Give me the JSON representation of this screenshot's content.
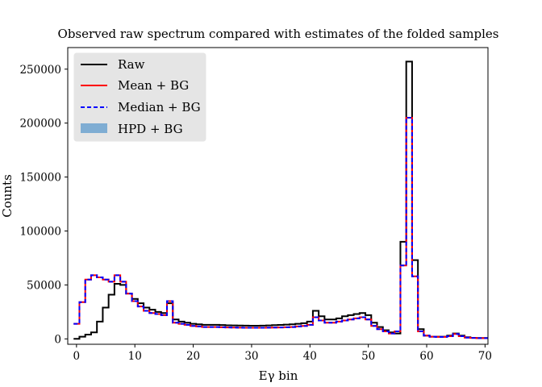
{
  "chart_data": {
    "type": "line",
    "title": "Observed raw spectrum compared with estimates of the folded samples",
    "xlabel": "Eγ bin",
    "ylabel": "Counts",
    "xlim": [
      -1.5,
      70.5
    ],
    "ylim": [
      -5000,
      270000
    ],
    "xticks": [
      0,
      10,
      20,
      30,
      40,
      50,
      60,
      70
    ],
    "yticks": [
      0,
      50000,
      100000,
      150000,
      200000,
      250000
    ],
    "grid": false,
    "legend_position": "top-left",
    "x": [
      0,
      1,
      2,
      3,
      4,
      5,
      6,
      7,
      8,
      9,
      10,
      11,
      12,
      13,
      14,
      15,
      16,
      17,
      18,
      19,
      20,
      21,
      22,
      23,
      24,
      25,
      26,
      27,
      28,
      29,
      30,
      31,
      32,
      33,
      34,
      35,
      36,
      37,
      38,
      39,
      40,
      41,
      42,
      43,
      44,
      45,
      46,
      47,
      48,
      49,
      50,
      51,
      52,
      53,
      54,
      55,
      56,
      57,
      58,
      59,
      60,
      61,
      62,
      63,
      64,
      65,
      66,
      67,
      68,
      69,
      70
    ],
    "series": [
      {
        "name": "Raw",
        "style": "solid",
        "color": "#000000",
        "values": [
          0,
          2000,
          4000,
          6000,
          16000,
          29000,
          41000,
          51000,
          50000,
          42000,
          37000,
          33000,
          29000,
          27000,
          25000,
          24000,
          33000,
          18000,
          16000,
          15000,
          14000,
          13500,
          13000,
          13000,
          13000,
          12800,
          12600,
          12500,
          12400,
          12300,
          12200,
          12200,
          12300,
          12500,
          12700,
          12900,
          13200,
          13500,
          14000,
          14500,
          16000,
          26000,
          21000,
          18000,
          18000,
          19000,
          21000,
          22000,
          23000,
          24000,
          22000,
          15000,
          11000,
          8000,
          6000,
          5000,
          90000,
          257000,
          73000,
          9000,
          3000,
          2000,
          2000,
          2000,
          3000,
          5000,
          3000,
          1500,
          1000,
          800,
          800
        ]
      },
      {
        "name": "Mean + BG",
        "style": "solid",
        "color": "#ff0000",
        "values": [
          14000,
          34000,
          55000,
          59000,
          57000,
          55000,
          53000,
          59000,
          53000,
          42000,
          35000,
          30000,
          26000,
          24000,
          23000,
          22000,
          35000,
          15000,
          14000,
          13000,
          12000,
          11500,
          11000,
          11000,
          11000,
          10800,
          10600,
          10500,
          10400,
          10300,
          10300,
          10300,
          10300,
          10400,
          10500,
          10600,
          10800,
          11000,
          11500,
          12000,
          13000,
          20000,
          17000,
          15000,
          15000,
          16000,
          17000,
          18000,
          19000,
          20000,
          18000,
          12000,
          9000,
          7000,
          5000,
          7000,
          68000,
          205000,
          58000,
          7000,
          3000,
          2000,
          1800,
          1800,
          2500,
          4500,
          2500,
          1200,
          900,
          700,
          700
        ]
      },
      {
        "name": "Median + BG",
        "style": "dashed",
        "color": "#0000ff",
        "values": [
          14000,
          34000,
          55000,
          59000,
          57000,
          55000,
          53000,
          59000,
          53000,
          42000,
          35000,
          30000,
          26000,
          24000,
          23000,
          22000,
          35000,
          15000,
          14000,
          13000,
          12000,
          11500,
          11000,
          11000,
          11000,
          10800,
          10600,
          10500,
          10400,
          10300,
          10300,
          10300,
          10300,
          10400,
          10500,
          10600,
          10800,
          11000,
          11500,
          12000,
          13000,
          20000,
          17000,
          15000,
          15000,
          16000,
          17000,
          18000,
          19000,
          20000,
          18000,
          12000,
          9000,
          7000,
          5000,
          7000,
          68000,
          205000,
          58000,
          7000,
          3000,
          2000,
          1800,
          1800,
          2500,
          4500,
          2500,
          1200,
          900,
          700,
          700
        ]
      },
      {
        "name": "HPD + BG",
        "style": "band",
        "color": "#7fadd3"
      }
    ]
  }
}
